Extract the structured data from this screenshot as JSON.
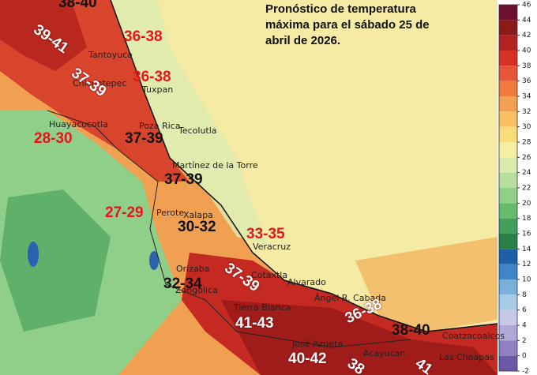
{
  "title": "Pronóstico de temperatura máxima para el sábado 25 de abril de 2026.",
  "places": [
    "Tantoyuca",
    "Chicontepec",
    "Tuxpan",
    "Huayacocotla",
    "Poza Rica",
    "Tecolutla",
    "Martínez de la Torre",
    "Perote",
    "Xalapa",
    "Veracruz",
    "Alvarado",
    "Orizaba",
    "Zongolica",
    "Cotaxtla",
    "Tierra Blanca",
    "Ángel R. Cabada",
    "José Azueta",
    "Acayucan",
    "Coatzacoalcos",
    "Las Choapas"
  ],
  "ranges": [
    {
      "text": "38-40",
      "color": "#111111"
    },
    {
      "text": "39-41",
      "color": "#ffffff"
    },
    {
      "text": "36-38",
      "color": "#e8141c"
    },
    {
      "text": "37-39",
      "color": "#ffffff"
    },
    {
      "text": "36-38",
      "color": "#e8141c"
    },
    {
      "text": "28-30",
      "color": "#e8141c"
    },
    {
      "text": "37-39",
      "color": "#111111"
    },
    {
      "text": "37-39",
      "color": "#111111"
    },
    {
      "text": "27-29",
      "color": "#e8141c"
    },
    {
      "text": "30-32",
      "color": "#111111"
    },
    {
      "text": "33-35",
      "color": "#e8141c"
    },
    {
      "text": "37-39",
      "color": "#ffffff"
    },
    {
      "text": "32-34",
      "color": "#111111"
    },
    {
      "text": "41-43",
      "color": "#ffffff"
    },
    {
      "text": "36-38",
      "color": "#ffffff"
    },
    {
      "text": "38-40",
      "color": "#111111"
    },
    {
      "text": "40-42",
      "color": "#ffffff"
    },
    {
      "text": "38",
      "color": "#ffffff"
    },
    {
      "text": "41",
      "color": "#ffffff"
    }
  ],
  "colorbar": {
    "ticks": [
      46,
      44,
      42,
      40,
      38,
      36,
      34,
      32,
      30,
      28,
      26,
      24,
      22,
      20,
      18,
      16,
      14,
      12,
      10,
      8,
      6,
      4,
      2,
      0,
      -2
    ],
    "colors": [
      "#6b1030",
      "#8b1a1a",
      "#b22222",
      "#d73027",
      "#e8553a",
      "#f07a3c",
      "#f5a050",
      "#f8c060",
      "#fadc7a",
      "#f5f0a0",
      "#d8ecb0",
      "#b6dfa0",
      "#8fcf8a",
      "#66bb6a",
      "#43a05a",
      "#2a8048",
      "#1f5fa8",
      "#3f86c8",
      "#7bb0dc",
      "#a8cce8",
      "#c8c8e8",
      "#b0a8d8",
      "#9080c0",
      "#6a5aa8"
    ]
  }
}
